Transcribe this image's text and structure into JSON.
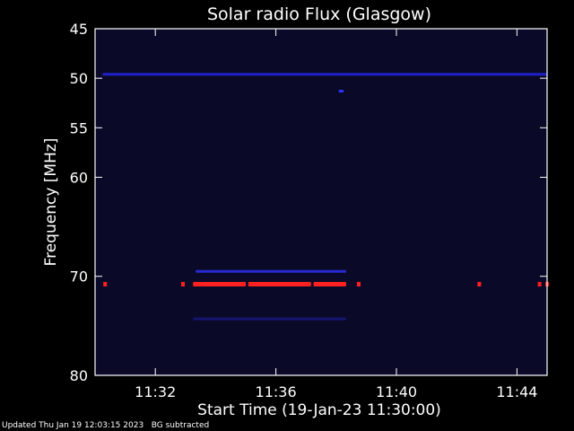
{
  "chart_data": {
    "type": "heatmap",
    "title": "Solar radio Flux (Glasgow)",
    "xlabel": "Start Time (19-Jan-23 11:30:00)",
    "ylabel": "Frequency [MHz]",
    "xlim": [
      "11:30:00",
      "11:45:00"
    ],
    "ylim": [
      45,
      80
    ],
    "y_inverted": true,
    "x_ticks": [
      {
        "t": "11:32:00",
        "label": "11:32"
      },
      {
        "t": "11:36:00",
        "label": "11:36"
      },
      {
        "t": "11:40:00",
        "label": "11:40"
      },
      {
        "t": "11:44:00",
        "label": "11:44"
      }
    ],
    "y_ticks": [
      {
        "v": 45,
        "label": "45"
      },
      {
        "v": 50,
        "label": "50"
      },
      {
        "v": 55,
        "label": "55"
      },
      {
        "v": 60,
        "label": "60"
      },
      {
        "v": 70,
        "label": "70"
      },
      {
        "v": 80,
        "label": "80"
      }
    ],
    "features": [
      {
        "name": "strong-band",
        "freq": 70.8,
        "spans": [
          [
            "11:33:15",
            "11:35:00"
          ],
          [
            "11:35:05",
            "11:37:10"
          ],
          [
            "11:37:15",
            "11:38:20"
          ]
        ],
        "color": "#ff2020",
        "intensity": "high"
      },
      {
        "name": "band-70-upper",
        "freq": 69.5,
        "spans": [
          [
            "11:33:20",
            "11:38:20"
          ]
        ],
        "color": "#2828d0",
        "intensity": "medium"
      },
      {
        "name": "band-50",
        "freq": 49.6,
        "spans": [
          [
            "11:30:15",
            "11:45:00"
          ]
        ],
        "color": "#2020c8",
        "intensity": "medium"
      },
      {
        "name": "band-74",
        "freq": 74.3,
        "spans": [
          [
            "11:33:15",
            "11:38:20"
          ]
        ],
        "color": "#141470",
        "intensity": "low"
      },
      {
        "name": "spot-51",
        "freq": 51.3,
        "spans": [
          [
            "11:38:05",
            "11:38:15"
          ]
        ],
        "color": "#3030ff",
        "intensity": "medium"
      }
    ],
    "spots": [
      {
        "t": "11:30:20",
        "freq": 70.8,
        "color": "#ff2020"
      },
      {
        "t": "11:32:55",
        "freq": 70.8,
        "color": "#ff2020"
      },
      {
        "t": "11:38:45",
        "freq": 70.8,
        "color": "#ff2020"
      },
      {
        "t": "11:42:45",
        "freq": 70.8,
        "color": "#ff2020"
      },
      {
        "t": "11:44:45",
        "freq": 70.8,
        "color": "#ff2020"
      },
      {
        "t": "11:45:00",
        "freq": 70.8,
        "color": "#ff2020"
      }
    ],
    "background_color": "#0a0a28",
    "axis_color": "#ffffff"
  },
  "footer": {
    "updated": "Updated Thu Jan 19 12:03:15 2023",
    "note": "BG subtracted"
  }
}
